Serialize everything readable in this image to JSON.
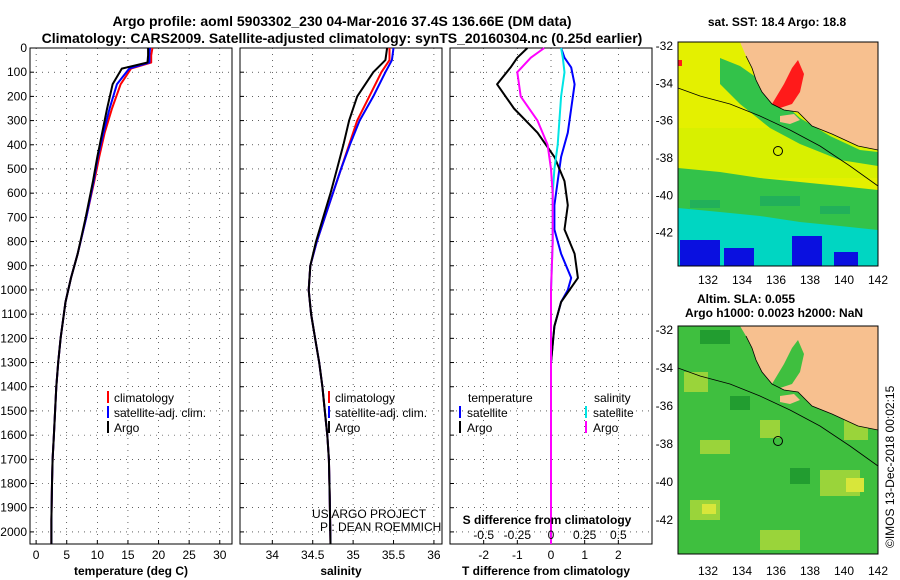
{
  "header": {
    "title_line1": "Argo profile: aoml 5903302_230 04-Mar-2016 37.4S 136.66E (DM data)",
    "title_line2": "Climatology: CARS2009. Satellite-adjusted climatology: synTS_20160304.nc (0.25d earlier)"
  },
  "colors": {
    "climatology": "#ff0000",
    "satellite_adj": "#0000ff",
    "argo": "#000000",
    "temp_diff_satellite": "#0000ff",
    "temp_diff_argo": "#000000",
    "sal_diff_satellite": "#00e5e5",
    "sal_diff_argo": "#ff00ff",
    "land": "#f7c08f",
    "map_contour": "#000000"
  },
  "y_ticks": [
    0,
    100,
    200,
    300,
    400,
    500,
    600,
    700,
    800,
    900,
    1000,
    1100,
    1200,
    1300,
    1400,
    1500,
    1600,
    1700,
    1800,
    1900,
    2000
  ],
  "legend_profiles": [
    "climatology",
    "satellite-adj. clim.",
    "Argo"
  ],
  "legend_diff": {
    "temp_title": "temperature",
    "sal_title": "salinity",
    "items": [
      "satellite",
      "Argo"
    ]
  },
  "credit": {
    "line1": "US ARGO PROJECT",
    "line2": "PI: DEAN ROEMMICH"
  },
  "maps": {
    "sst_title": "sat. SST: 18.4 Argo: 18.8",
    "sla_title_line1": "Altim. SLA: 0.055",
    "sla_title_line2": "Argo h1000: 0.0023 h2000: NaN",
    "lat_ticks": [
      "-32",
      "-34",
      "-36",
      "-38",
      "-40",
      "-42"
    ],
    "lon_ticks": [
      "132",
      "134",
      "136",
      "138",
      "140",
      "142"
    ],
    "argo_marker": "circle",
    "watermark": "©IMOS 13-Dec-2018 00:02:15"
  },
  "chart_data": [
    {
      "type": "line",
      "name": "temperature",
      "xlabel": "temperature (deg C)",
      "ylabel": "",
      "xlim": [
        -1,
        32
      ],
      "ylim": [
        2050,
        0
      ],
      "xticks": [
        0,
        5,
        10,
        15,
        20,
        25,
        30
      ],
      "series": [
        {
          "name": "climatology",
          "color": "#ff0000",
          "x": [
            19,
            18.8,
            18.8,
            15.5,
            13.8,
            12.4,
            11.2,
            10.3,
            9.5,
            8.2,
            6.8,
            5.7,
            4.8,
            4.0,
            3.6,
            3.3,
            3.1,
            2.9,
            2.7,
            2.6,
            2.5,
            2.5
          ],
          "y": [
            0,
            30,
            60,
            85,
            150,
            250,
            350,
            450,
            550,
            700,
            850,
            950,
            1050,
            1200,
            1300,
            1400,
            1500,
            1600,
            1700,
            1800,
            1950,
            2050
          ]
        },
        {
          "name": "satellite-adj. clim.",
          "color": "#0000ff",
          "x": [
            18.6,
            18.5,
            18.5,
            15.2,
            13.2,
            12.0,
            11.0,
            10.1,
            9.4,
            8.2,
            6.8,
            5.7,
            4.8,
            4.0,
            3.6,
            3.3,
            3.1,
            2.9,
            2.7,
            2.6,
            2.5,
            2.5
          ],
          "y": [
            0,
            30,
            60,
            85,
            150,
            250,
            350,
            450,
            550,
            700,
            850,
            950,
            1050,
            1200,
            1300,
            1400,
            1500,
            1600,
            1700,
            1800,
            1950,
            2050
          ]
        },
        {
          "name": "Argo",
          "color": "#000000",
          "x": [
            18.3,
            18.3,
            18.2,
            14.0,
            12.5,
            11.6,
            10.8,
            10.0,
            9.3,
            8.1,
            6.8,
            5.7,
            4.8,
            4.0,
            3.6,
            3.3,
            3.1,
            2.9,
            2.7,
            2.6,
            2.5,
            2.5
          ],
          "y": [
            0,
            30,
            60,
            85,
            150,
            250,
            350,
            450,
            550,
            700,
            850,
            950,
            1050,
            1200,
            1300,
            1400,
            1500,
            1600,
            1700,
            1800,
            1950,
            2050
          ]
        }
      ]
    },
    {
      "type": "line",
      "name": "salinity",
      "xlabel": "salinity",
      "ylabel": "",
      "xlim": [
        33.6,
        36.1
      ],
      "ylim": [
        2050,
        0
      ],
      "xticks": [
        34,
        34.5,
        35,
        35.5,
        36
      ],
      "series": [
        {
          "name": "climatology",
          "color": "#ff0000",
          "x": [
            35.45,
            35.45,
            35.35,
            35.2,
            35.05,
            34.95,
            34.85,
            34.75,
            34.65,
            34.55,
            34.47,
            34.45,
            34.48,
            34.53,
            34.58,
            34.62,
            34.65,
            34.68,
            34.7,
            34.71,
            34.72
          ],
          "y": [
            0,
            50,
            100,
            200,
            300,
            400,
            500,
            600,
            700,
            800,
            900,
            1000,
            1100,
            1200,
            1300,
            1400,
            1500,
            1600,
            1700,
            1850,
            2050
          ]
        },
        {
          "name": "satellite-adj. clim.",
          "color": "#0000ff",
          "x": [
            35.5,
            35.48,
            35.4,
            35.25,
            35.08,
            34.96,
            34.85,
            34.75,
            34.65,
            34.55,
            34.47,
            34.45,
            34.48,
            34.53,
            34.58,
            34.62,
            34.65,
            34.68,
            34.7,
            34.71,
            34.72
          ],
          "y": [
            0,
            50,
            100,
            200,
            300,
            400,
            500,
            600,
            700,
            800,
            900,
            1000,
            1100,
            1200,
            1300,
            1400,
            1500,
            1600,
            1700,
            1850,
            2050
          ]
        },
        {
          "name": "Argo",
          "color": "#000000",
          "x": [
            35.42,
            35.4,
            35.25,
            35.05,
            34.95,
            34.88,
            34.8,
            34.72,
            34.63,
            34.54,
            34.47,
            34.45,
            34.48,
            34.53,
            34.58,
            34.62,
            34.65,
            34.68,
            34.7,
            34.71,
            34.72
          ],
          "y": [
            0,
            50,
            100,
            200,
            300,
            400,
            500,
            600,
            700,
            800,
            900,
            1000,
            1100,
            1200,
            1300,
            1400,
            1500,
            1600,
            1700,
            1850,
            2050
          ]
        }
      ]
    },
    {
      "type": "line",
      "name": "differences",
      "xlabel": "T difference from climatology",
      "xlabel_top": "S difference from climatology",
      "ylabel": "",
      "xlim": [
        -3,
        3
      ],
      "ylim": [
        2050,
        0
      ],
      "xticks": [
        -2,
        -1,
        0,
        1,
        2
      ],
      "xticks_top": [
        "-0.5",
        "-0.25",
        "0",
        "0.25",
        "0.5"
      ],
      "series": [
        {
          "name": "temperature satellite",
          "color": "#0000ff",
          "x": [
            0.3,
            0.4,
            0.6,
            0.7,
            0.6,
            0.5,
            0.3,
            0.2,
            0.1,
            0.1,
            0.3,
            0.6,
            0.5,
            0.3,
            0.1,
            0.0,
            0.0,
            0.0
          ],
          "y": [
            0,
            40,
            80,
            150,
            250,
            350,
            450,
            550,
            650,
            750,
            850,
            950,
            1000,
            1050,
            1150,
            1300,
            1600,
            2050
          ]
        },
        {
          "name": "temperature Argo",
          "color": "#000000",
          "x": [
            -0.7,
            -1.0,
            -1.2,
            -1.6,
            -1.1,
            -0.4,
            0.1,
            0.4,
            0.5,
            0.4,
            0.7,
            0.8,
            0.3,
            0.1,
            0.0,
            0.0,
            0.0
          ],
          "y": [
            0,
            40,
            80,
            150,
            250,
            350,
            450,
            550,
            650,
            750,
            850,
            950,
            1050,
            1150,
            1300,
            1600,
            2050
          ]
        },
        {
          "name": "salinity satellite",
          "color": "#00e5e5",
          "x": [
            0.3,
            0.35,
            0.4,
            0.3,
            0.25,
            0.2,
            0.1,
            0.05,
            0.05,
            0.0,
            0.0,
            0.0,
            0.0
          ],
          "y": [
            0,
            40,
            100,
            200,
            300,
            400,
            500,
            600,
            800,
            1000,
            1200,
            1600,
            2050
          ]
        },
        {
          "name": "salinity Argo",
          "color": "#ff00ff",
          "x": [
            -0.2,
            -0.6,
            -1.0,
            -0.9,
            -0.4,
            -0.1,
            0.0,
            0.05,
            0.05,
            0.0,
            0.0,
            0.0,
            0.0
          ],
          "y": [
            0,
            40,
            100,
            200,
            300,
            400,
            500,
            600,
            800,
            1000,
            1200,
            1600,
            2050
          ]
        }
      ]
    }
  ]
}
